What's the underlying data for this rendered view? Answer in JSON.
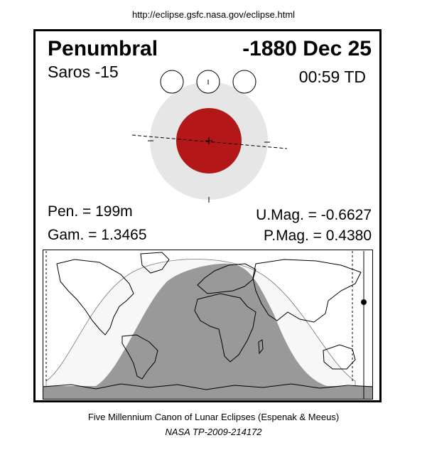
{
  "header": {
    "url": "http://eclipse.gsfc.nasa.gov/eclipse.html"
  },
  "eclipse": {
    "type": "Penumbral",
    "date": "-1880 Dec 25",
    "saros": "Saros -15",
    "time": "00:59 TD",
    "pen_duration": "Pen. = 199m",
    "gamma": "Gam. = 1.3465",
    "umbral_magnitude": "U.Mag. = -0.6627",
    "penumbral_magnitude": "P.Mag. = 0.4380"
  },
  "colors": {
    "umbra": "#b31717",
    "penumbra": "#e6e6e6",
    "night_map": "#999999",
    "penumbral_map": "#f7f7f7"
  },
  "footer": {
    "line1": "Five Millennium Canon of Lunar Eclipses (Espenak & Meeus)",
    "line2": "NASA TP-2009-214172"
  }
}
